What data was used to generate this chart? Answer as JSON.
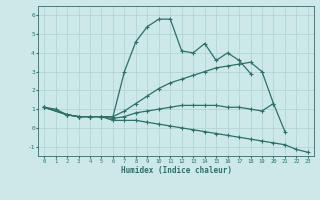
{
  "xlabel": "Humidex (Indice chaleur)",
  "bg_color": "#cde8e8",
  "line_color": "#2d7068",
  "grid_color": "#b0d0d0",
  "xlim": [
    -0.5,
    23.5
  ],
  "ylim": [
    -1.5,
    6.5
  ],
  "yticks": [
    -1,
    0,
    1,
    2,
    3,
    4,
    5,
    6
  ],
  "xticks": [
    0,
    1,
    2,
    3,
    4,
    5,
    6,
    7,
    8,
    9,
    10,
    11,
    12,
    13,
    14,
    15,
    16,
    17,
    18,
    19,
    20,
    21,
    22,
    23
  ],
  "series": [
    {
      "x": [
        0,
        1,
        2,
        3,
        4,
        5,
        6,
        7,
        8,
        9,
        10,
        11,
        12,
        13,
        14,
        15,
        16,
        17,
        18,
        19
      ],
      "y": [
        1.1,
        1.0,
        0.7,
        0.6,
        0.6,
        0.6,
        0.6,
        3.0,
        4.6,
        5.4,
        5.8,
        5.8,
        4.1,
        4.0,
        4.5,
        3.6,
        4.0,
        3.6,
        2.9,
        null
      ]
    },
    {
      "x": [
        0,
        2,
        3,
        4,
        5,
        6,
        7,
        8,
        9,
        10,
        11,
        12,
        13,
        14,
        15,
        16,
        17,
        18,
        19,
        20,
        21,
        22,
        23
      ],
      "y": [
        1.1,
        0.7,
        0.6,
        0.6,
        0.6,
        0.6,
        0.9,
        1.3,
        1.7,
        2.1,
        2.4,
        2.6,
        2.8,
        3.0,
        3.2,
        3.3,
        3.4,
        3.5,
        3.0,
        1.3,
        null,
        null,
        null
      ]
    },
    {
      "x": [
        0,
        2,
        3,
        4,
        5,
        6,
        7,
        8,
        9,
        10,
        11,
        12,
        13,
        14,
        15,
        16,
        17,
        18,
        19,
        20,
        21,
        22,
        23
      ],
      "y": [
        1.1,
        0.7,
        0.6,
        0.6,
        0.6,
        0.5,
        0.6,
        0.8,
        0.9,
        1.0,
        1.1,
        1.2,
        1.2,
        1.2,
        1.2,
        1.1,
        1.1,
        1.0,
        0.9,
        1.3,
        -0.2,
        null,
        null
      ]
    },
    {
      "x": [
        0,
        2,
        3,
        4,
        5,
        6,
        7,
        8,
        9,
        10,
        11,
        12,
        13,
        14,
        15,
        16,
        17,
        18,
        19,
        20,
        21,
        22,
        23
      ],
      "y": [
        1.1,
        0.7,
        0.6,
        0.6,
        0.6,
        0.4,
        0.4,
        0.4,
        0.3,
        0.2,
        0.1,
        0.0,
        -0.1,
        -0.2,
        -0.3,
        -0.4,
        -0.5,
        -0.6,
        -0.7,
        -0.8,
        -0.9,
        -1.15,
        -1.3
      ]
    }
  ]
}
